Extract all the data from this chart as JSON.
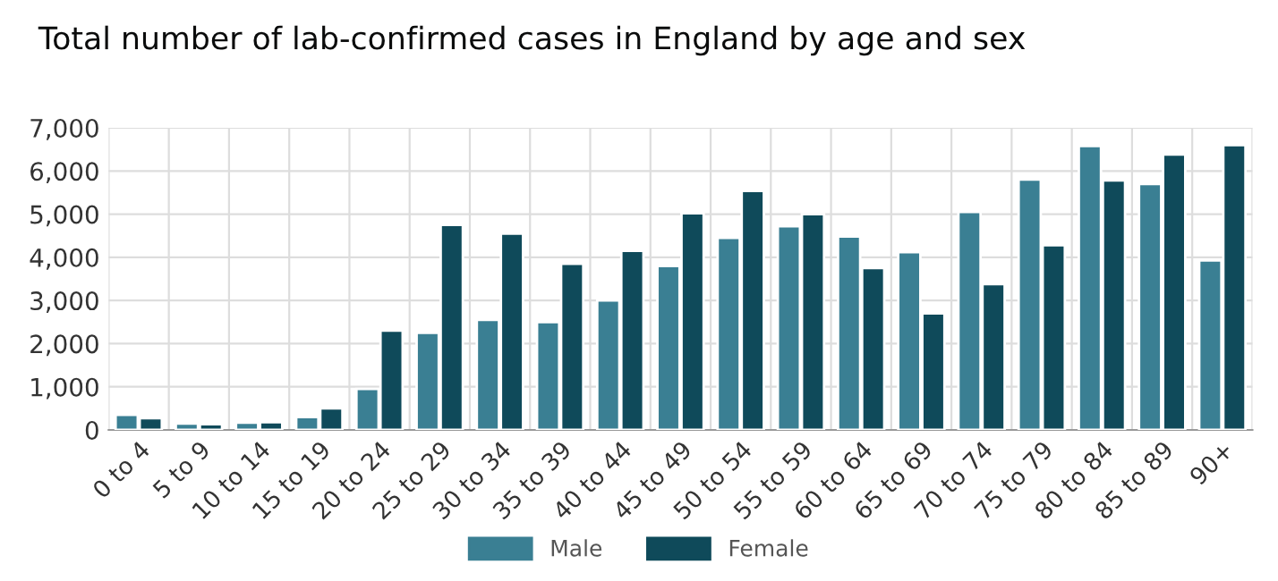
{
  "chart_data": {
    "type": "bar",
    "title": "Total number of lab-confirmed cases in England by age and sex",
    "categories": [
      "0 to 4",
      "5 to 9",
      "10 to 14",
      "15 to 19",
      "20 to 24",
      "25 to 29",
      "30 to 34",
      "35 to 39",
      "40 to 44",
      "45 to 49",
      "50 to 54",
      "55 to 59",
      "60 to 64",
      "65 to 69",
      "70 to 74",
      "75 to 79",
      "80 to 84",
      "85 to 89",
      "90+"
    ],
    "series": [
      {
        "name": "Male",
        "color": "#3a7f93",
        "values": [
          350,
          150,
          170,
          300,
          950,
          2250,
          2550,
          2500,
          3000,
          3800,
          4450,
          4720,
          4480,
          4120,
          5050,
          5800,
          6580,
          5700,
          3930
        ]
      },
      {
        "name": "Female",
        "color": "#0f4a5a",
        "values": [
          270,
          130,
          180,
          500,
          2300,
          4750,
          4550,
          3850,
          4150,
          5020,
          5540,
          5000,
          3750,
          2700,
          3380,
          4280,
          5780,
          6380,
          6600
        ]
      }
    ],
    "ylim": [
      0,
      7000
    ],
    "yticks": [
      {
        "value": 0,
        "label": "0"
      },
      {
        "value": 1000,
        "label": "1,000"
      },
      {
        "value": 2000,
        "label": "2,000"
      },
      {
        "value": 3000,
        "label": "3,000"
      },
      {
        "value": 4000,
        "label": "4,000"
      },
      {
        "value": 5000,
        "label": "5,000"
      },
      {
        "value": 6000,
        "label": "6,000"
      },
      {
        "value": 7000,
        "label": "7,000"
      }
    ],
    "grid": true,
    "legend": "bottom"
  }
}
